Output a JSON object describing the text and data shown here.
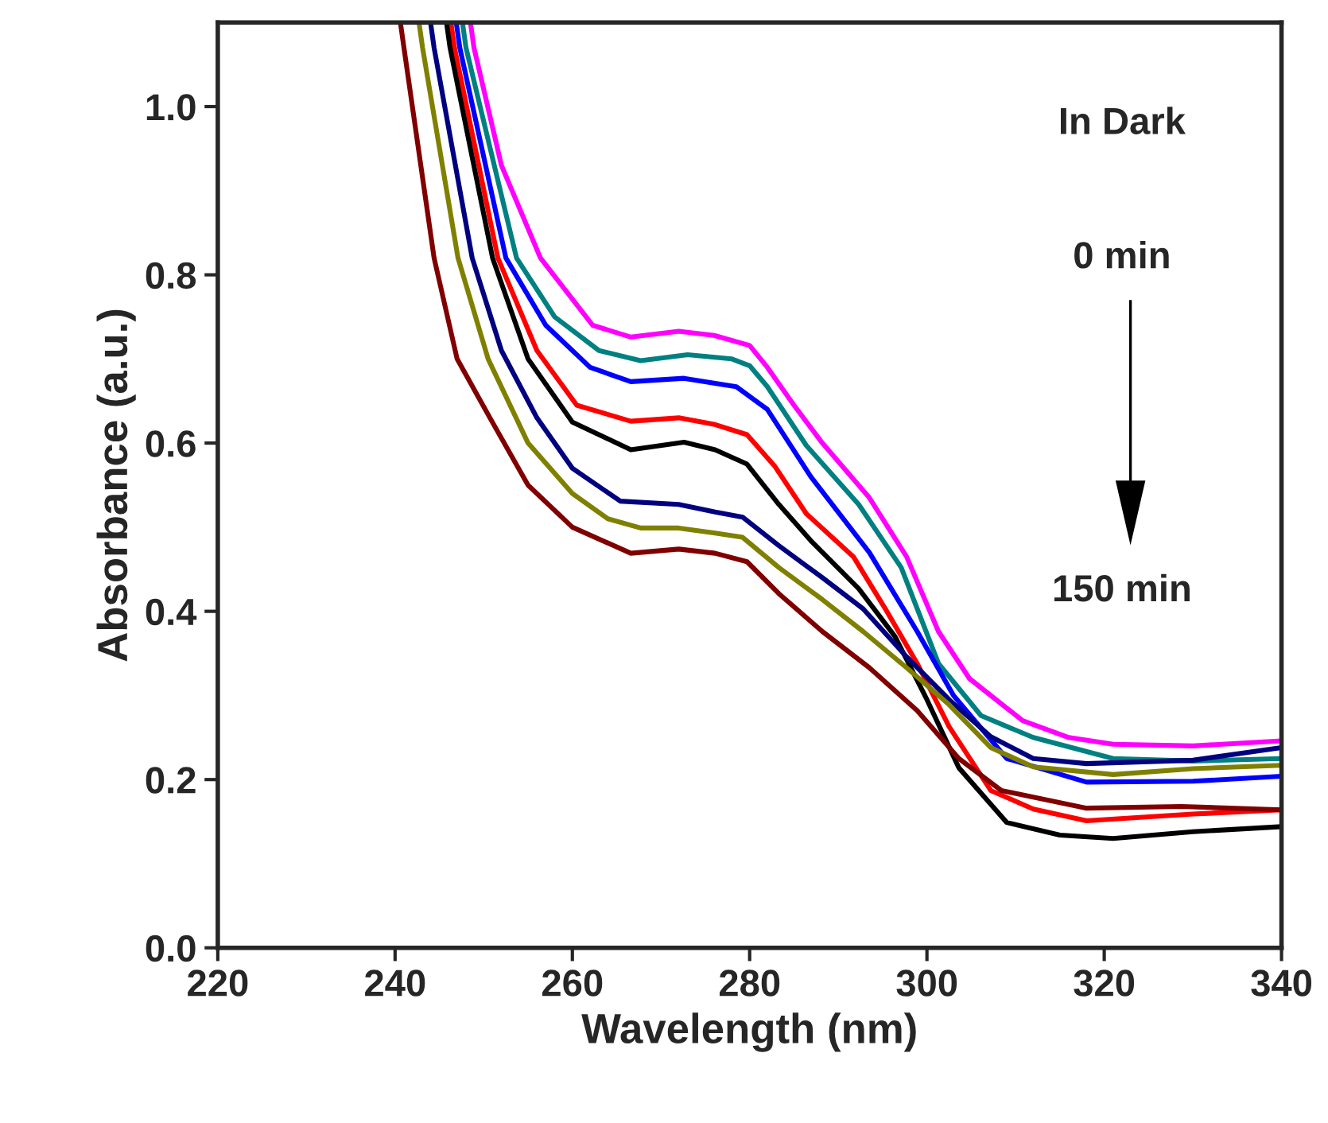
{
  "chart_data": {
    "type": "line",
    "xlabel": "Wavelength (nm)",
    "ylabel": "Absorbance (a.u.)",
    "xlim": [
      220,
      340
    ],
    "xticks": [
      220,
      240,
      260,
      280,
      300,
      320,
      340
    ],
    "ylim": [
      0,
      1.1
    ],
    "yticks": [
      {
        "value": 0,
        "label": "0.0"
      },
      {
        "value": 0.2,
        "label": "0.2"
      },
      {
        "value": 0.4,
        "label": "0.4"
      },
      {
        "value": 0.6,
        "label": "0.6"
      },
      {
        "value": 0.8,
        "label": "0.8"
      },
      {
        "value": 1.0,
        "label": "1.0"
      }
    ],
    "grid": false,
    "legend": false,
    "marker": "none",
    "line_style": "solid",
    "annotations": [
      "In Dark",
      "0 min",
      "150 min"
    ],
    "series": [
      {
        "color": "#ff00ff",
        "x": [
          248.5,
          248.9,
          252,
          256.4,
          262.3,
          266.6,
          272,
          276,
          280,
          282,
          285,
          288.2,
          293.5,
          297.7,
          301.3,
          304.8,
          310.8,
          316,
          321,
          330,
          340
        ],
        "values": [
          1.1,
          1.07,
          0.93,
          0.82,
          0.74,
          0.726,
          0.733,
          0.728,
          0.716,
          0.69,
          0.645,
          0.6,
          0.535,
          0.465,
          0.376,
          0.32,
          0.27,
          0.25,
          0.242,
          0.24,
          0.246
        ]
      },
      {
        "color": "#008080",
        "x": [
          247.6,
          248.0,
          253.7,
          258,
          263,
          267.7,
          273,
          278,
          280,
          282,
          286.4,
          292.3,
          297.1,
          301.3,
          306.1,
          312,
          321,
          330,
          340
        ],
        "values": [
          1.1,
          1.07,
          0.82,
          0.75,
          0.71,
          0.698,
          0.705,
          0.7,
          0.692,
          0.667,
          0.597,
          0.527,
          0.452,
          0.338,
          0.276,
          0.25,
          0.225,
          0.222,
          0.225
        ]
      },
      {
        "color": "#0000ff",
        "x": [
          246.9,
          247.3,
          252.5,
          257,
          262,
          266.6,
          272.6,
          278.5,
          282,
          286.9,
          293.5,
          298.9,
          303,
          309,
          318,
          330,
          340
        ],
        "values": [
          1.1,
          1.07,
          0.82,
          0.74,
          0.69,
          0.673,
          0.677,
          0.667,
          0.64,
          0.56,
          0.47,
          0.376,
          0.3,
          0.225,
          0.197,
          0.198,
          0.204
        ]
      },
      {
        "color": "#ff0000",
        "x": [
          246.3,
          246.7,
          251.6,
          256,
          260.5,
          266.6,
          272,
          276.1,
          279.7,
          282.8,
          286.4,
          291.7,
          295.3,
          298.9,
          302.5,
          307.2,
          312,
          318,
          330,
          340
        ],
        "values": [
          1.1,
          1.07,
          0.82,
          0.71,
          0.645,
          0.626,
          0.63,
          0.622,
          0.61,
          0.573,
          0.516,
          0.465,
          0.403,
          0.338,
          0.263,
          0.187,
          0.165,
          0.151,
          0.159,
          0.164
        ]
      },
      {
        "color": "#000000",
        "x": [
          245.8,
          246.2,
          251.0,
          255,
          260,
          266.6,
          272.6,
          276.1,
          279.7,
          283.3,
          286.9,
          292.3,
          296.4,
          300,
          303.6,
          309,
          315,
          321,
          330,
          340
        ],
        "values": [
          1.1,
          1.07,
          0.82,
          0.7,
          0.625,
          0.592,
          0.601,
          0.592,
          0.575,
          0.527,
          0.484,
          0.427,
          0.37,
          0.295,
          0.214,
          0.149,
          0.134,
          0.13,
          0.138,
          0.144
        ]
      },
      {
        "color": "#000080",
        "x": [
          244.0,
          244.4,
          248.7,
          252,
          256,
          260,
          265.4,
          272,
          276.1,
          279.2,
          283.3,
          288.2,
          292.8,
          297.7,
          302.5,
          307.2,
          312,
          318,
          330,
          340
        ],
        "values": [
          1.1,
          1.07,
          0.82,
          0.71,
          0.63,
          0.57,
          0.531,
          0.527,
          0.518,
          0.512,
          0.478,
          0.44,
          0.403,
          0.346,
          0.295,
          0.251,
          0.225,
          0.219,
          0.223,
          0.238
        ]
      },
      {
        "color": "#808000",
        "x": [
          242.7,
          243.1,
          247.1,
          250.5,
          255,
          260,
          264,
          267.7,
          272,
          276.1,
          279.2,
          283.3,
          288.2,
          292.8,
          297.7,
          302.5,
          307.2,
          312,
          321,
          330,
          340
        ],
        "values": [
          1.1,
          1.07,
          0.82,
          0.7,
          0.6,
          0.54,
          0.51,
          0.499,
          0.499,
          0.493,
          0.488,
          0.452,
          0.414,
          0.376,
          0.333,
          0.289,
          0.238,
          0.215,
          0.206,
          0.213,
          0.217
        ]
      },
      {
        "color": "#800000",
        "x": [
          240.6,
          241.0,
          244.4,
          247,
          250.7,
          255,
          260,
          266.6,
          272,
          276.1,
          279.7,
          283.3,
          288.2,
          293.5,
          298.9,
          303.6,
          308.4,
          318,
          328.7,
          340
        ],
        "values": [
          1.1,
          1.07,
          0.82,
          0.7,
          0.63,
          0.55,
          0.5,
          0.469,
          0.474,
          0.469,
          0.459,
          0.421,
          0.376,
          0.333,
          0.282,
          0.225,
          0.187,
          0.166,
          0.168,
          0.164
        ]
      }
    ]
  }
}
